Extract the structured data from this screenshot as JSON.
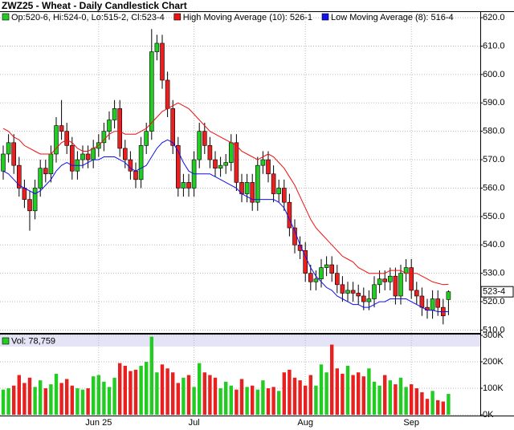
{
  "chart_data": {
    "type": "candlestick",
    "title": "ZWZ25 - Wheat - Daily Candlestick Chart",
    "legend_text": "Op:520-6, Hi:524-0, Lo:515-2, Cl:523-4",
    "last_price_label": "523-4",
    "categories": [
      null,
      null,
      null,
      null,
      null,
      null,
      null,
      null,
      null,
      null,
      null,
      null,
      null,
      null,
      null,
      null,
      null,
      null,
      "Jun 25",
      null,
      null,
      null,
      null,
      null,
      null,
      null,
      null,
      null,
      null,
      null,
      null,
      null,
      null,
      null,
      null,
      null,
      "Jul",
      null,
      null,
      null,
      null,
      null,
      null,
      null,
      null,
      null,
      null,
      null,
      null,
      null,
      null,
      null,
      null,
      null,
      null,
      null,
      null,
      "Aug",
      null,
      null,
      null,
      null,
      null,
      null,
      null,
      null,
      null,
      null,
      null,
      null,
      null,
      null,
      null,
      null,
      null,
      null,
      null,
      "Sep",
      null,
      null,
      null,
      null,
      null,
      null,
      null
    ],
    "open": [
      566,
      572,
      576,
      568,
      560,
      556,
      552,
      560,
      567,
      565,
      572,
      582,
      580,
      575,
      566,
      570,
      572,
      570,
      574,
      576,
      580,
      584,
      588,
      574,
      570,
      566,
      563,
      575,
      580,
      608,
      611,
      598,
      588,
      575,
      560,
      562,
      560,
      570,
      580,
      575,
      570,
      567,
      568,
      569,
      576,
      562,
      558,
      562,
      555,
      568,
      570,
      565,
      558,
      560,
      555,
      546,
      540,
      538,
      530,
      527,
      528,
      532,
      533,
      530,
      526,
      523,
      524,
      523,
      522,
      520,
      521,
      526,
      528,
      527,
      529,
      522,
      530,
      532,
      524,
      522,
      518,
      517,
      521,
      518,
      520.75
    ],
    "high": [
      575,
      579,
      579,
      571,
      563,
      559,
      563,
      570,
      570,
      575,
      585,
      591,
      583,
      578,
      573,
      575,
      575,
      577,
      579,
      583,
      587,
      591,
      591,
      577,
      573,
      569,
      578,
      583,
      616,
      614,
      614,
      601,
      591,
      578,
      565,
      565,
      573,
      583,
      583,
      578,
      573,
      571,
      572,
      579,
      579,
      565,
      565,
      565,
      571,
      573,
      573,
      568,
      563,
      563,
      558,
      549,
      543,
      541,
      533,
      531,
      535,
      536,
      536,
      533,
      529,
      527,
      527,
      526,
      525,
      524,
      529,
      531,
      531,
      532,
      532,
      533,
      535,
      535,
      527,
      525,
      521,
      524,
      524,
      521,
      524
    ],
    "low": [
      563,
      569,
      565,
      557,
      553,
      545,
      549,
      557,
      562,
      562,
      569,
      577,
      572,
      563,
      563,
      567,
      567,
      567,
      571,
      573,
      577,
      581,
      571,
      567,
      563,
      560,
      560,
      572,
      577,
      605,
      595,
      585,
      572,
      557,
      557,
      557,
      557,
      567,
      572,
      567,
      564,
      564,
      565,
      566,
      559,
      555,
      555,
      552,
      552,
      565,
      562,
      555,
      555,
      552,
      543,
      537,
      535,
      527,
      524,
      524,
      525,
      529,
      527,
      523,
      520,
      520,
      520,
      519,
      517,
      517,
      518,
      523,
      524,
      524,
      519,
      519,
      527,
      521,
      519,
      515,
      514,
      514,
      515,
      512,
      515.25
    ],
    "close": [
      572,
      576,
      568,
      560,
      556,
      552,
      560,
      567,
      565,
      572,
      582,
      580,
      575,
      566,
      570,
      572,
      570,
      574,
      576,
      580,
      584,
      588,
      574,
      570,
      566,
      563,
      575,
      580,
      608,
      611,
      598,
      588,
      575,
      560,
      562,
      560,
      570,
      580,
      575,
      570,
      567,
      568,
      569,
      576,
      562,
      558,
      562,
      555,
      568,
      570,
      565,
      558,
      560,
      555,
      546,
      540,
      538,
      530,
      527,
      528,
      532,
      533,
      530,
      526,
      523,
      524,
      523,
      522,
      520,
      521,
      526,
      528,
      527,
      529,
      522,
      530,
      532,
      524,
      522,
      518,
      517,
      521,
      518,
      515,
      523.5
    ],
    "up_color": "#22cc22",
    "down_color": "#e82020",
    "ylim": [
      509,
      622
    ],
    "yticks": [
      {
        "value": 510,
        "label": "510.0"
      },
      {
        "value": 520,
        "label": "520.0"
      },
      {
        "value": 530,
        "label": "530.0"
      },
      {
        "value": 540,
        "label": "540.0"
      },
      {
        "value": 550,
        "label": "550.0"
      },
      {
        "value": 560,
        "label": "560.0"
      },
      {
        "value": 570,
        "label": "570.0"
      },
      {
        "value": 580,
        "label": "580.0"
      },
      {
        "value": 590,
        "label": "590.0"
      },
      {
        "value": 600,
        "label": "600.0"
      },
      {
        "value": 610,
        "label": "610.0"
      },
      {
        "value": 620,
        "label": "620.0"
      }
    ],
    "grid": true,
    "series": [
      {
        "name": "High Moving Average (10): 526-1",
        "color": "#ee1111",
        "values": [
          581,
          580,
          578,
          577,
          575,
          574,
          573,
          572,
          572,
          572,
          574,
          576,
          577,
          576,
          574,
          573,
          573,
          574,
          575,
          577,
          579,
          580,
          580,
          579,
          579,
          579,
          580,
          581,
          583,
          585,
          587,
          588,
          589,
          590,
          589,
          588,
          586,
          584,
          582,
          580,
          579,
          578,
          577,
          576,
          575,
          573,
          572,
          571,
          570,
          571,
          572,
          571,
          569,
          567,
          564,
          561,
          557,
          553,
          549,
          546,
          544,
          542,
          540,
          538,
          536,
          535,
          534,
          532,
          531,
          530,
          530,
          530,
          530,
          531,
          531,
          531,
          530,
          530,
          530,
          529,
          528,
          527,
          526.5,
          526,
          526.125
        ]
      },
      {
        "name": "Low Moving Average (8): 516-4",
        "color": "#1111ee",
        "values": [
          566,
          565,
          563,
          561,
          560,
          559,
          558,
          559,
          561,
          563,
          566,
          568,
          569,
          568,
          568,
          568,
          569,
          570,
          570,
          571,
          571,
          571,
          570,
          569,
          567,
          566,
          567,
          568,
          571,
          574,
          576,
          577,
          576,
          573,
          569,
          566,
          565,
          565,
          565,
          565,
          564,
          563,
          562,
          561,
          560,
          558,
          557,
          556,
          556,
          556,
          556,
          556,
          555,
          553,
          549,
          545,
          540,
          536,
          532,
          529,
          527,
          525,
          524,
          522,
          521,
          520,
          519,
          519,
          518,
          518,
          519,
          520,
          520,
          521,
          521,
          521,
          521,
          520,
          519,
          518,
          517,
          517,
          516.5,
          516.5,
          516.5
        ]
      }
    ],
    "volume": {
      "label": "Vol: 78,759",
      "values": [
        95000,
        100000,
        110000,
        150000,
        120000,
        140000,
        105000,
        130000,
        100000,
        115000,
        155000,
        120000,
        135000,
        110000,
        100000,
        95000,
        100000,
        145000,
        150000,
        125000,
        105000,
        140000,
        195000,
        185000,
        165000,
        170000,
        185000,
        200000,
        295000,
        160000,
        190000,
        175000,
        160000,
        120000,
        140000,
        150000,
        105000,
        195000,
        160000,
        150000,
        140000,
        100000,
        125000,
        110000,
        95000,
        135000,
        105000,
        110000,
        95000,
        130000,
        100000,
        105000,
        90000,
        160000,
        170000,
        140000,
        130000,
        110000,
        150000,
        110000,
        190000,
        160000,
        265000,
        175000,
        155000,
        185000,
        150000,
        160000,
        145000,
        175000,
        125000,
        110000,
        150000,
        130000,
        115000,
        140000,
        105000,
        115000,
        100000,
        85000,
        60000,
        90000,
        55000,
        50000,
        78759
      ],
      "ylim": [
        0,
        300000
      ],
      "yticks": [
        {
          "value": 0,
          "label": "0K"
        },
        {
          "value": 100000,
          "label": "100K"
        },
        {
          "value": 200000,
          "label": "200K"
        },
        {
          "value": 300000,
          "label": "300K"
        }
      ]
    }
  }
}
